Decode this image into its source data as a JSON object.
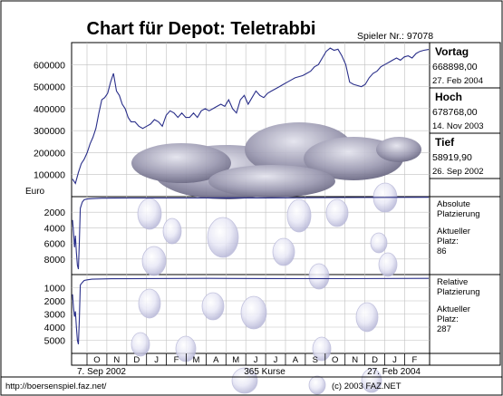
{
  "page": {
    "title": "Chart für Depot:  Teletrabbi",
    "player_label": "Spieler Nr.: 97078",
    "footer_url": "http://boersenspiel.faz.net/",
    "footer_copyright": "(c) 2003 FAZ.NET"
  },
  "panel": {
    "vortag_label": "Vortag",
    "vortag_value": "668898,00",
    "vortag_date": "27. Feb 2004",
    "hoch_label": "Hoch",
    "hoch_value": "678768,00",
    "hoch_date": "14. Nov 2003",
    "tief_label": "Tief",
    "tief_value": "58919,90",
    "tief_date": "26. Sep 2002",
    "abs_label_1": "Absolute",
    "abs_label_2": "Platzierung",
    "abs_cur_1": "Aktueller",
    "abs_cur_2": "Platz:",
    "abs_cur_value": "86",
    "rel_label_1": "Relative",
    "rel_label_2": "Platzierung",
    "rel_cur_1": "Aktueller",
    "rel_cur_2": "Platz:",
    "rel_cur_value": "287"
  },
  "chart_data": [
    {
      "type": "line",
      "name": "depot-value",
      "ylabel": "Euro",
      "ylim": [
        0,
        700000
      ],
      "yticks": [
        "600000",
        "500000",
        "400000",
        "300000",
        "200000",
        "100000"
      ],
      "ytick_values": [
        600000,
        500000,
        400000,
        300000,
        200000,
        100000
      ],
      "x": [
        0,
        3,
        6,
        9,
        12,
        15,
        18,
        21,
        24,
        27,
        30,
        33,
        36,
        39,
        42,
        45,
        48,
        51,
        54,
        57,
        60,
        64,
        68,
        72,
        76,
        80,
        84,
        88,
        92,
        96,
        100,
        104,
        108,
        112,
        116,
        120,
        124,
        128,
        132,
        136,
        140,
        144,
        148,
        152,
        156,
        160,
        164,
        168,
        172,
        176,
        180,
        184,
        188,
        192,
        196,
        200,
        204,
        208,
        212,
        216,
        220,
        224,
        228,
        232,
        236,
        240,
        244,
        248,
        252,
        256,
        260,
        264,
        268,
        272,
        276,
        280,
        284,
        288,
        292,
        296,
        300,
        304,
        308,
        312,
        316,
        320,
        324,
        328,
        332,
        336,
        340,
        344,
        348,
        352,
        356,
        360,
        365
      ],
      "values": [
        80000,
        60000,
        110000,
        150000,
        170000,
        200000,
        240000,
        270000,
        310000,
        380000,
        440000,
        450000,
        470000,
        520000,
        560000,
        480000,
        460000,
        420000,
        400000,
        360000,
        340000,
        340000,
        320000,
        310000,
        320000,
        330000,
        350000,
        340000,
        320000,
        370000,
        390000,
        380000,
        360000,
        380000,
        360000,
        360000,
        380000,
        360000,
        390000,
        400000,
        390000,
        400000,
        410000,
        420000,
        410000,
        440000,
        400000,
        380000,
        440000,
        460000,
        420000,
        450000,
        480000,
        460000,
        450000,
        470000,
        480000,
        490000,
        500000,
        510000,
        520000,
        530000,
        540000,
        545000,
        550000,
        560000,
        570000,
        590000,
        600000,
        630000,
        660000,
        675000,
        665000,
        670000,
        640000,
        600000,
        520000,
        510000,
        505000,
        500000,
        510000,
        540000,
        560000,
        570000,
        590000,
        600000,
        610000,
        620000,
        630000,
        620000,
        635000,
        640000,
        630000,
        650000,
        660000,
        665000,
        668898
      ]
    },
    {
      "type": "line",
      "name": "absolute-platzierung",
      "ylim": [
        0,
        10000
      ],
      "yticks": [
        "2000",
        "4000",
        "6000",
        "8000"
      ],
      "ytick_values": [
        2000,
        4000,
        6000,
        8000
      ],
      "x": [
        0,
        1,
        2,
        3,
        4,
        5,
        6,
        7,
        8,
        10,
        12,
        15,
        20,
        30,
        60,
        120,
        200,
        280,
        365
      ],
      "values": [
        3000,
        4500,
        6500,
        5000,
        7200,
        8800,
        9300,
        6000,
        1500,
        700,
        400,
        300,
        250,
        200,
        180,
        170,
        160,
        120,
        86
      ]
    },
    {
      "type": "line",
      "name": "relative-platzierung",
      "ylim": [
        0,
        6000
      ],
      "yticks": [
        "1000",
        "2000",
        "3000",
        "4000",
        "5000"
      ],
      "ytick_values": [
        1000,
        2000,
        3000,
        4000,
        5000
      ],
      "x": [
        0,
        1,
        2,
        3,
        4,
        5,
        6,
        7,
        8,
        10,
        12,
        15,
        20,
        40,
        80,
        140,
        200,
        280,
        365
      ],
      "values": [
        1500,
        2500,
        3200,
        2800,
        4000,
        5000,
        5300,
        3500,
        800,
        600,
        450,
        400,
        350,
        320,
        300,
        290,
        300,
        310,
        287
      ]
    }
  ],
  "xaxis": {
    "month_labels": [
      "O",
      "N",
      "D",
      "J",
      "F",
      "M",
      "A",
      "M",
      "J",
      "J",
      "A",
      "S",
      "O",
      "N",
      "D",
      "J",
      "F"
    ],
    "start_date": "7. Sep 2002",
    "middle_label": "365 Kurse",
    "end_date": "27. Feb 2004"
  },
  "colors": {
    "line": "#2a2f8a",
    "grid": "#c0c0c0",
    "frame": "#000000",
    "text": "#000000"
  }
}
